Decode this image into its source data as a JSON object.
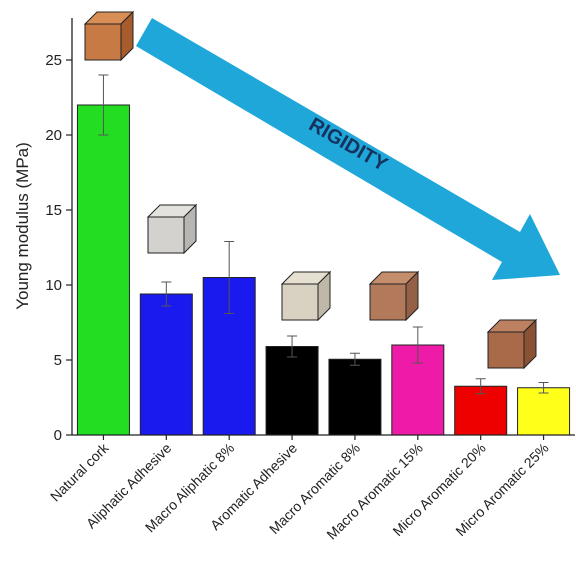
{
  "chart_data": {
    "type": "bar",
    "y_label": "Young modulus (MPa)",
    "annotation": "RIGIDITY",
    "categories": [
      "Natural cork",
      "Aliphatic Adhesive",
      "Macro Aliphatic 8%",
      "Aromatic Adhesive",
      "Macro Aromatic 8%",
      "Macro Aromatic 15%",
      "Micro Aromatic 20%",
      "Micro Aromatic 25%"
    ],
    "values": [
      22.0,
      9.4,
      10.5,
      5.9,
      5.05,
      6.0,
      3.25,
      3.15
    ],
    "errors": [
      2.0,
      0.8,
      2.4,
      0.7,
      0.4,
      1.2,
      0.5,
      0.35
    ],
    "colors": [
      "#22dd22",
      "#1a1aee",
      "#1a1aee",
      "#000000",
      "#000000",
      "#ee1aa8",
      "#ee0000",
      "#ffff1a"
    ],
    "ylim": [
      0,
      27.8
    ],
    "yticks": [
      0,
      5,
      10,
      15,
      20,
      25
    ]
  }
}
